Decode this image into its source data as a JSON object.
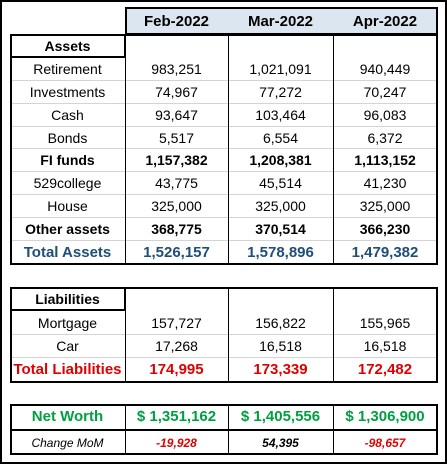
{
  "table": {
    "columns": [
      "Feb-2022",
      "Mar-2022",
      "Apr-2022"
    ],
    "rows": [
      {
        "label": "Assets"
      },
      {
        "label": "Retirement",
        "values": [
          "983,251",
          "1,021,091",
          "940,449"
        ]
      },
      {
        "label": "Investments",
        "values": [
          "74,967",
          "77,272",
          "70,247"
        ]
      },
      {
        "label": "Cash",
        "values": [
          "93,647",
          "103,464",
          "96,083"
        ]
      },
      {
        "label": "Bonds",
        "values": [
          "5,517",
          "6,554",
          "6,372"
        ]
      },
      {
        "label": "FI funds",
        "values": [
          "1,157,382",
          "1,208,381",
          "1,113,152"
        ]
      },
      {
        "label": "529college",
        "values": [
          "43,775",
          "45,514",
          "41,230"
        ]
      },
      {
        "label": "House",
        "values": [
          "325,000",
          "325,000",
          "325,000"
        ]
      },
      {
        "label": "Other assets",
        "values": [
          "368,775",
          "370,514",
          "366,230"
        ]
      },
      {
        "label": "Total Assets",
        "values": [
          "1,526,157",
          "1,578,896",
          "1,479,382"
        ]
      },
      {
        "label": "Liabilities"
      },
      {
        "label": "Mortgage",
        "values": [
          "157,727",
          "156,822",
          "155,965"
        ]
      },
      {
        "label": "Car",
        "values": [
          "17,268",
          "16,518",
          "16,518"
        ]
      },
      {
        "label": "Total Liabilities",
        "values": [
          "174,995",
          "173,339",
          "172,482"
        ]
      },
      {
        "label": "Net Worth",
        "values": [
          "$ 1,351,162",
          "$ 1,405,556",
          "$ 1,306,900"
        ]
      },
      {
        "label": "Change MoM",
        "values": [
          "-19,928",
          "54,395",
          "-98,657"
        ]
      }
    ]
  }
}
